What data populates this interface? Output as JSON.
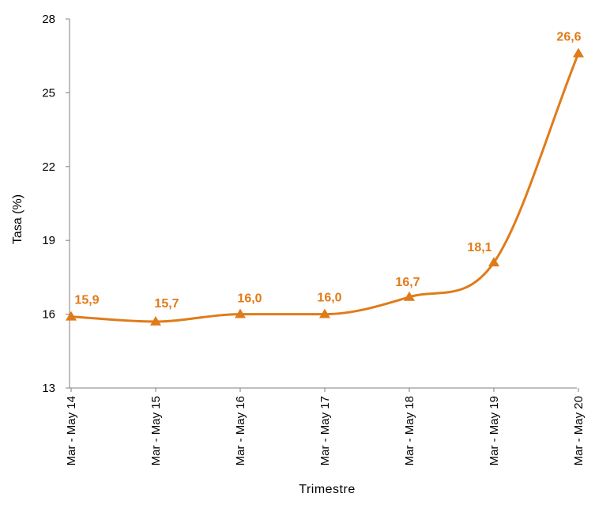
{
  "chart_data": {
    "type": "line",
    "categories": [
      "Mar - May 14",
      "Mar - May 15",
      "Mar - May 16",
      "Mar - May 17",
      "Mar - May 18",
      "Mar - May 19",
      "Mar - May 20"
    ],
    "series": [
      {
        "values": [
          15.9,
          15.7,
          16.0,
          16.0,
          16.7,
          18.1,
          26.6
        ],
        "labels": [
          "15,9",
          "15,7",
          "16,0",
          "16,0",
          "16,7",
          "18,1",
          "26,6"
        ],
        "color": "#E07B1A",
        "marker": "triangle"
      }
    ],
    "xlabel": "Trimestre",
    "ylabel": "Tasa (%)",
    "ylim": [
      13,
      28
    ],
    "yticks": [
      13,
      16,
      19,
      22,
      25,
      28
    ],
    "grid": false,
    "legend": "none"
  }
}
